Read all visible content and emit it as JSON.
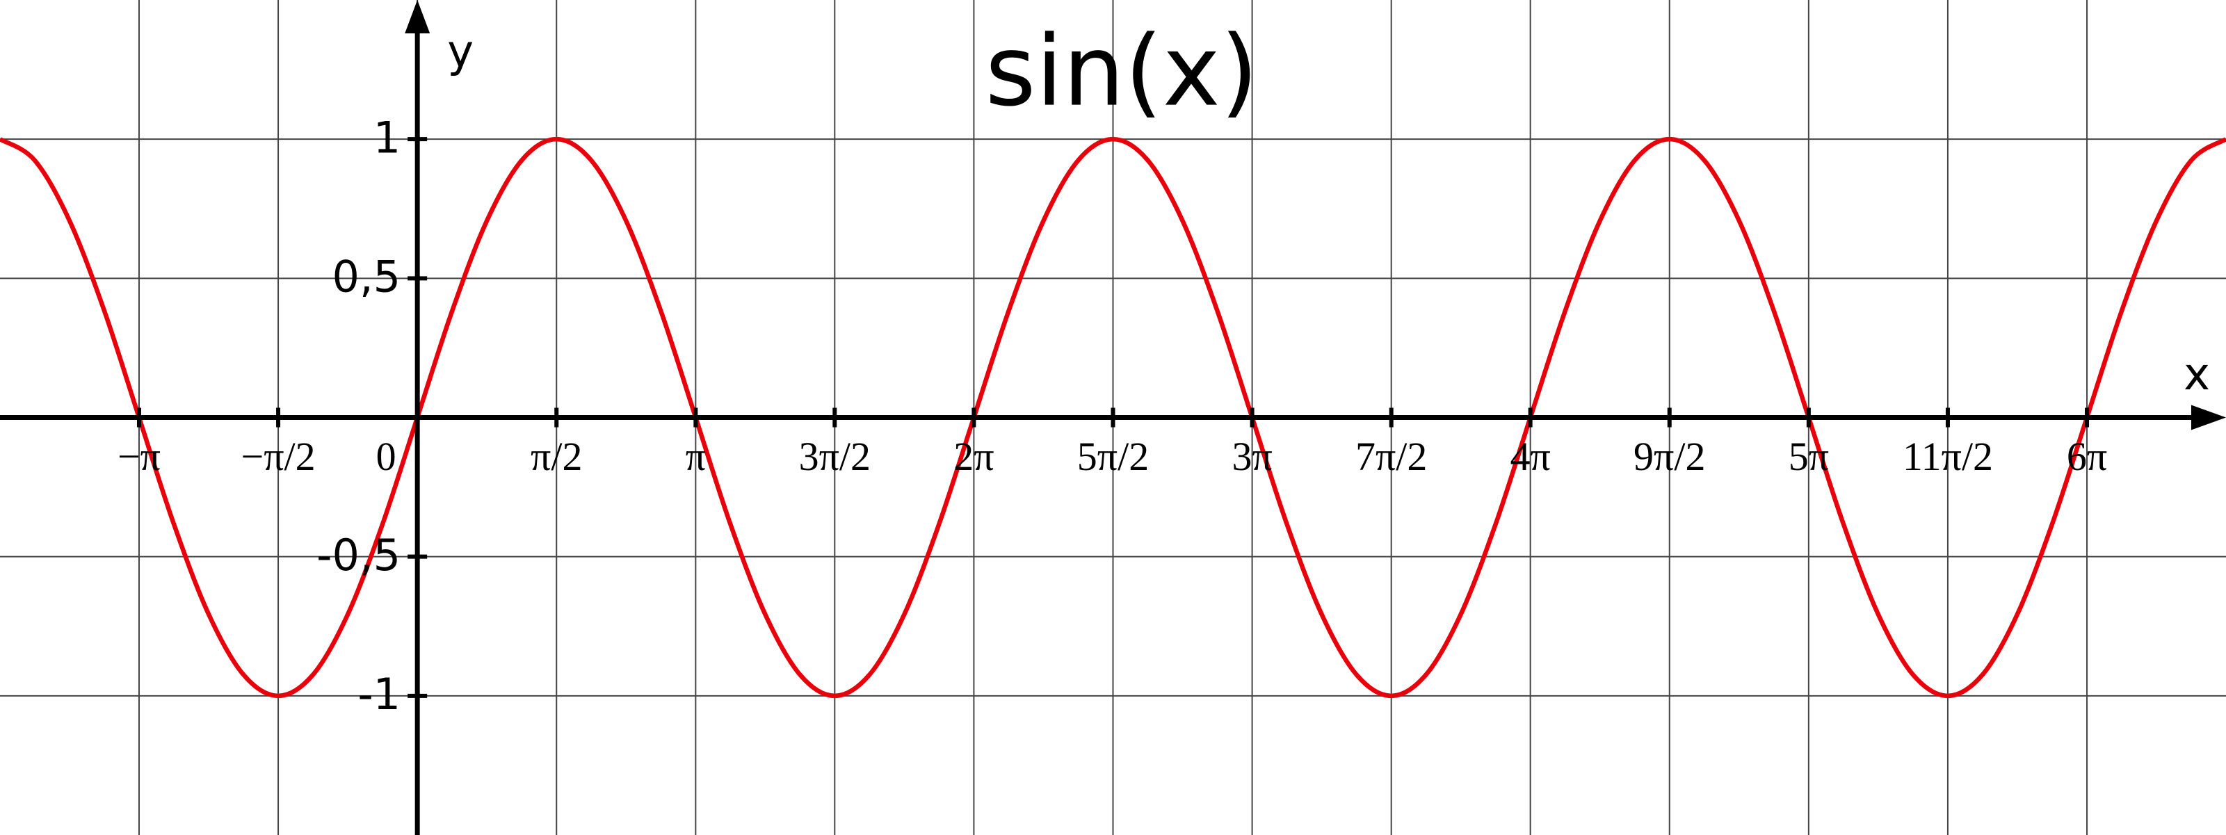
{
  "chart_data": {
    "type": "line",
    "title": "sin(x)",
    "x_label": "x",
    "y_label": "y",
    "xlim": [
      -4.712,
      20.42
    ],
    "ylim": [
      -1.5,
      1.5
    ],
    "xticks": [
      {
        "value": -3.142,
        "label": "−π"
      },
      {
        "value": -1.571,
        "label": "−π/2"
      },
      0,
      {
        "value": 1.571,
        "label": "π/2"
      },
      {
        "value": 3.142,
        "label": "π"
      },
      {
        "value": 4.712,
        "label": "3π/2"
      },
      {
        "value": 6.283,
        "label": "2π"
      },
      {
        "value": 7.854,
        "label": "5π/2"
      },
      {
        "value": 9.425,
        "label": "3π"
      },
      {
        "value": 10.996,
        "label": "7π/2"
      },
      {
        "value": 12.566,
        "label": "4π"
      },
      {
        "value": 14.137,
        "label": "9π/2"
      },
      {
        "value": 15.708,
        "label": "5π"
      },
      {
        "value": 17.279,
        "label": "11π/2"
      },
      {
        "value": 18.85,
        "label": "6π"
      }
    ],
    "yticks": [
      1,
      {
        "value": 0.5,
        "label": "0,5"
      },
      {
        "value": -0.5,
        "label": "-0,5"
      },
      -1
    ],
    "grid": true,
    "x": [
      -4.712,
      -4.32,
      -3.927,
      -3.534,
      -3.142,
      -2.749,
      -2.356,
      -1.963,
      -1.571,
      -1.178,
      -0.785,
      -0.393,
      0,
      0.393,
      0.785,
      1.178,
      1.571,
      1.963,
      2.356,
      2.749,
      3.142,
      3.534,
      3.927,
      4.32,
      4.712,
      5.105,
      5.498,
      5.89,
      6.283,
      6.676,
      7.069,
      7.461,
      7.854,
      8.247,
      8.639,
      9.032,
      9.425,
      9.817,
      10.21,
      10.603,
      10.996,
      11.388,
      11.781,
      12.174,
      12.566,
      12.959,
      13.352,
      13.744,
      14.137,
      14.53,
      14.923,
      15.315,
      15.708,
      16.101,
      16.493,
      16.886,
      17.279,
      17.671,
      18.064,
      18.457,
      18.85,
      19.242,
      19.635,
      20.028,
      20.42
    ],
    "series": [
      {
        "name": "sin(x)",
        "color": "#e8000b",
        "values": [
          1,
          0.924,
          0.707,
          0.383,
          0,
          -0.383,
          -0.707,
          -0.924,
          -1,
          -0.924,
          -0.707,
          -0.383,
          0,
          0.383,
          0.707,
          0.924,
          1,
          0.924,
          0.707,
          0.383,
          0,
          -0.383,
          -0.707,
          -0.924,
          -1,
          -0.924,
          -0.707,
          -0.383,
          0,
          0.383,
          0.707,
          0.924,
          1,
          0.924,
          0.707,
          0.383,
          0,
          -0.383,
          -0.707,
          -0.924,
          -1,
          -0.924,
          -0.707,
          -0.383,
          0,
          0.383,
          0.707,
          0.924,
          1,
          0.924,
          0.707,
          0.383,
          0,
          -0.383,
          -0.707,
          -0.924,
          -1,
          -0.924,
          -0.707,
          -0.383,
          0,
          0.383,
          0.707,
          0.924,
          1
        ]
      }
    ]
  }
}
